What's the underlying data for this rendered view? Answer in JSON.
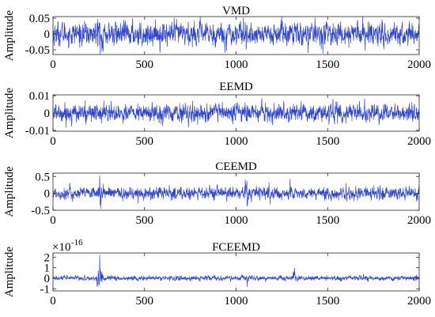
{
  "chart_data": [
    {
      "type": "line",
      "title": "VMD",
      "ylabel": "Amplitude",
      "xlim": [
        0,
        2000
      ],
      "ylim": [
        -0.065,
        0.055
      ],
      "xticks": [
        0,
        500,
        1000,
        1500,
        2000
      ],
      "xtick_labels": [
        "0",
        "500",
        "1000",
        "1500",
        "2000"
      ],
      "yticks": [
        -0.05,
        0,
        0.05
      ],
      "ytick_labels": [
        "-0.05",
        "0",
        "0.05"
      ],
      "grid": false,
      "series": [
        {
          "color": "#2f46c8",
          "n_samples": 2000,
          "approx_amplitude": 0.02,
          "spikes": [
            {
              "x": 245,
              "y": 0.047
            },
            {
              "x": 258,
              "y": -0.063
            },
            {
              "x": 1040,
              "y": 0.052
            },
            {
              "x": 1055,
              "y": -0.048
            },
            {
              "x": 1320,
              "y": 0.034
            }
          ]
        }
      ]
    },
    {
      "type": "line",
      "title": "EEMD",
      "ylabel": "Amplitude",
      "xlim": [
        0,
        2000
      ],
      "ylim": [
        -0.0105,
        0.0105
      ],
      "xticks": [
        0,
        500,
        1000,
        1500,
        2000
      ],
      "xtick_labels": [
        "0",
        "500",
        "1000",
        "1500",
        "2000"
      ],
      "yticks": [
        -0.01,
        0,
        0.01
      ],
      "ytick_labels": [
        "-0.01",
        "0",
        "0.01"
      ],
      "grid": false,
      "series": [
        {
          "color": "#2f46c8",
          "n_samples": 2000,
          "approx_amplitude": 0.0028,
          "spikes": [
            {
              "x": 180,
              "y": -0.0065
            },
            {
              "x": 1000,
              "y": 0.0058
            },
            {
              "x": 1600,
              "y": -0.006
            },
            {
              "x": 1960,
              "y": 0.0062
            }
          ]
        }
      ]
    },
    {
      "type": "line",
      "title": "CEEMD",
      "ylabel": "Amplitude",
      "xlim": [
        0,
        2000
      ],
      "ylim": [
        -0.5,
        0.6
      ],
      "xticks": [
        0,
        500,
        1000,
        1500,
        2000
      ],
      "xtick_labels": [
        "0",
        "500",
        "1000",
        "1500",
        "2000"
      ],
      "yticks": [
        -0.5,
        0,
        0.5
      ],
      "ytick_labels": [
        "-0.5",
        "0",
        "0.5"
      ],
      "grid": false,
      "series": [
        {
          "color": "#2f46c8",
          "n_samples": 2000,
          "approx_amplitude": 0.1,
          "spikes": [
            {
              "x": 255,
              "y": 0.52
            },
            {
              "x": 262,
              "y": -0.45
            },
            {
              "x": 1050,
              "y": 0.4
            },
            {
              "x": 1060,
              "y": -0.38
            },
            {
              "x": 1180,
              "y": 0.32
            },
            {
              "x": 1985,
              "y": -0.2
            }
          ]
        }
      ]
    },
    {
      "type": "line",
      "title": "FCEEMD",
      "ylabel": "Amplitude",
      "multiplier_base": "×10",
      "multiplier_exponent": "-16",
      "xlim": [
        0,
        2000
      ],
      "ylim": [
        -1.2,
        2.4
      ],
      "xticks": [
        0,
        500,
        1000,
        1500,
        2000
      ],
      "xtick_labels": [
        "0",
        "500",
        "1000",
        "1500",
        "2000"
      ],
      "yticks": [
        -1,
        0,
        1,
        2
      ],
      "ytick_labels": [
        "-1",
        "0",
        "1",
        "2"
      ],
      "grid": false,
      "series": [
        {
          "color": "#2f46c8",
          "n_samples": 2000,
          "approx_amplitude": 0.12,
          "spikes": [
            {
              "x": 255,
              "y": 2.2
            },
            {
              "x": 262,
              "y": -0.3
            },
            {
              "x": 1060,
              "y": -0.8
            },
            {
              "x": 1320,
              "y": 0.95
            },
            {
              "x": 1985,
              "y": 0.3
            }
          ]
        }
      ]
    }
  ]
}
